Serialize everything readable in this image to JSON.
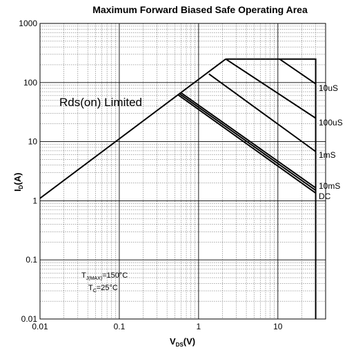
{
  "chart_data": {
    "type": "line",
    "title": "Maximum Forward Biased Safe Operating Area",
    "xlabel": {
      "main": "V",
      "sub": "DS",
      "unit": "(V)"
    },
    "ylabel": {
      "main": "I",
      "sub": "D",
      "unit": "(A)"
    },
    "xscale": "log",
    "yscale": "log",
    "xlim": [
      0.01,
      40
    ],
    "ylim": [
      0.01,
      1000
    ],
    "grid": true,
    "x_tick_labels": [
      "0.01",
      "0.1",
      "1",
      "10"
    ],
    "y_tick_labels": [
      "0.01",
      "0.1",
      "1",
      "10",
      "100",
      "1000"
    ],
    "series": [
      {
        "name": "Rds(on) Limited",
        "x": [
          0.01,
          2.2
        ],
        "y": [
          1.1,
          250
        ]
      },
      {
        "name": "10uS",
        "x": [
          2.2,
          30,
          30
        ],
        "y": [
          250,
          250,
          0.01
        ]
      },
      {
        "name": "100uS",
        "x": [
          2.2,
          30
        ],
        "y": [
          250,
          25
        ]
      },
      {
        "name": "1mS",
        "x": [
          1.35,
          30
        ],
        "y": [
          140,
          6.8
        ]
      },
      {
        "name": "10mS",
        "x": [
          0.6,
          30
        ],
        "y": [
          67,
          1.65
        ]
      },
      {
        "name": "DC",
        "x": [
          0.55,
          30
        ],
        "y": [
          62,
          1.35
        ]
      },
      {
        "name": "",
        "x": [
          0.58,
          30
        ],
        "y": [
          64,
          1.5
        ]
      },
      {
        "name": "",
        "x": [
          10.5,
          30
        ],
        "y": [
          250,
          95
        ]
      }
    ],
    "annotations": {
      "rds_label": "Rds(on) Limited",
      "curve_labels": [
        "10uS",
        "100uS",
        "1mS",
        "10mS",
        "DC"
      ],
      "tj_main": "T",
      "tj_sub": "J(MAX)",
      "tj_value": "=150°C",
      "tc_main": "T",
      "tc_sub": "C",
      "tc_value": "=25°C"
    }
  }
}
